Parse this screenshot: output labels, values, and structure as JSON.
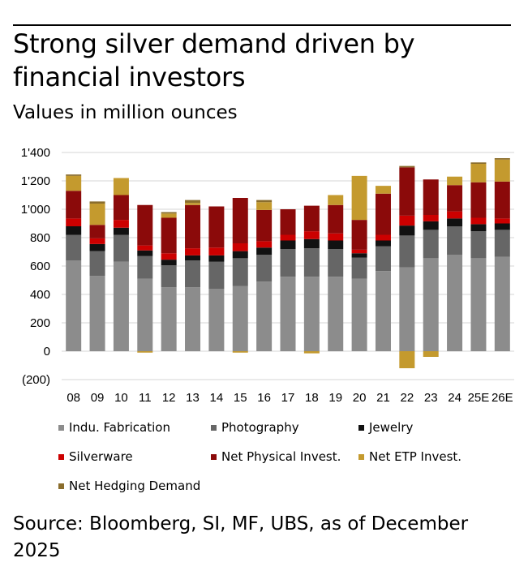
{
  "title": "Strong silver demand driven by financial investors",
  "subtitle": "Values in million ounces",
  "source": "Source: Bloomberg, SI, MF, UBS, as of December 2025",
  "colors": {
    "industrial": "#8c8c8c",
    "photography": "#666666",
    "jewelry": "#111111",
    "silverware": "#cc0000",
    "physical": "#8b0a0a",
    "etp": "#c49a2e",
    "hedging": "#8a6d2c"
  },
  "chart_data": {
    "type": "bar",
    "stacked": true,
    "title": "Strong silver demand driven by financial investors",
    "subtitle": "Values in million ounces",
    "categories": [
      "08",
      "09",
      "10",
      "11",
      "12",
      "13",
      "14",
      "15",
      "16",
      "17",
      "18",
      "19",
      "20",
      "21",
      "22",
      "23",
      "24",
      "25E",
      "26E"
    ],
    "ylim": [
      -200,
      1400
    ],
    "yticks": [
      -200,
      0,
      200,
      400,
      600,
      800,
      1000,
      1200,
      1400
    ],
    "ytick_labels": [
      "(200)",
      "0",
      "200",
      "400",
      "600",
      "800",
      "1'000",
      "1'200",
      "1'400"
    ],
    "grid": true,
    "legend_position": "bottom",
    "series": [
      {
        "name": "Indu. Fabrication",
        "color_key": "industrial",
        "values": [
          640,
          530,
          630,
          510,
          450,
          450,
          440,
          460,
          490,
          525,
          525,
          525,
          510,
          565,
          590,
          655,
          680,
          655,
          665
        ]
      },
      {
        "name": "Photography",
        "color_key": "photography",
        "values": [
          180,
          175,
          190,
          160,
          155,
          190,
          190,
          195,
          190,
          195,
          200,
          195,
          150,
          175,
          225,
          200,
          200,
          190,
          190
        ]
      },
      {
        "name": "Jewelry",
        "color_key": "jewelry",
        "values": [
          60,
          50,
          50,
          40,
          40,
          35,
          45,
          50,
          50,
          60,
          65,
          60,
          30,
          40,
          70,
          60,
          55,
          50,
          45
        ]
      },
      {
        "name": "Silverware",
        "color_key": "silverware",
        "values": [
          55,
          40,
          55,
          35,
          45,
          50,
          55,
          55,
          45,
          40,
          55,
          50,
          25,
          40,
          70,
          45,
          50,
          45,
          35
        ]
      },
      {
        "name": "Net Physical Invest.",
        "color_key": "physical",
        "values": [
          195,
          95,
          175,
          285,
          250,
          305,
          290,
          320,
          220,
          180,
          180,
          200,
          210,
          290,
          340,
          250,
          185,
          250,
          260
        ]
      },
      {
        "name": "Net ETP Invest.",
        "color_key": "etp",
        "values": [
          105,
          150,
          120,
          -10,
          30,
          15,
          0,
          -10,
          55,
          0,
          -15,
          70,
          310,
          55,
          -120,
          -40,
          60,
          130,
          155
        ]
      },
      {
        "name": "Net Hedging Demand",
        "color_key": "hedging",
        "values": [
          10,
          15,
          0,
          0,
          10,
          20,
          0,
          0,
          15,
          0,
          0,
          0,
          0,
          0,
          10,
          0,
          0,
          10,
          10
        ]
      }
    ]
  }
}
